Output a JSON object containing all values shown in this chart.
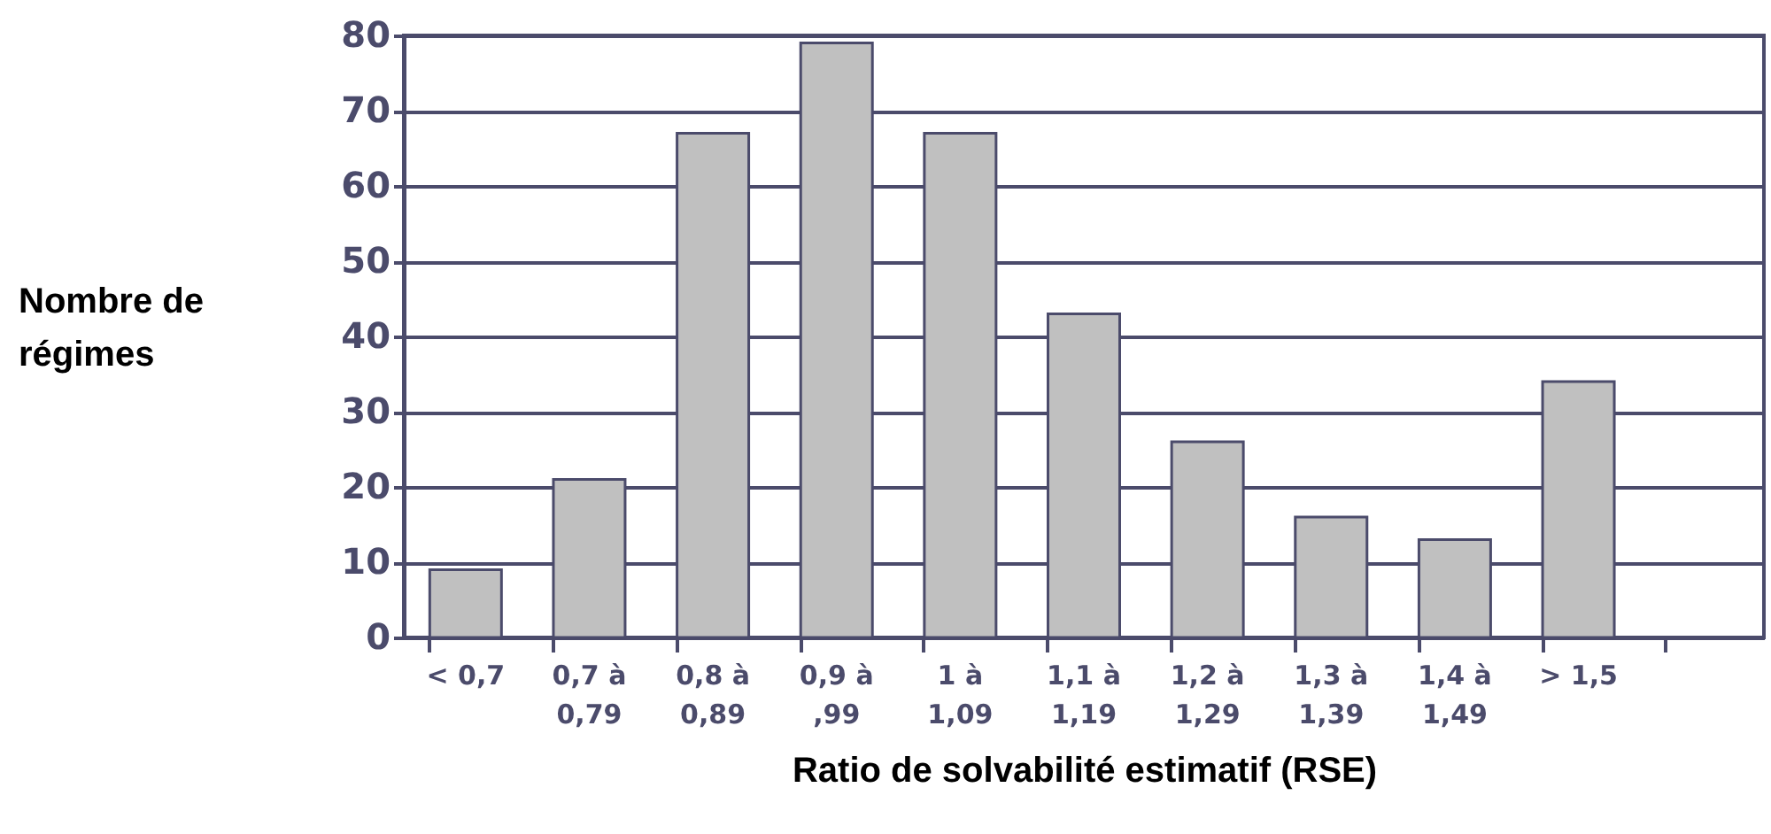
{
  "chart_data": {
    "type": "bar",
    "xlabel": "Ratio de solvabilité estimatif (RSE)",
    "ylabel": "Nombre de\nrégimes",
    "categories": [
      "< 0,7",
      "0,7 à\n0,79",
      "0,8 à\n0,89",
      "0,9 à\n,99",
      "1 à\n1,09",
      "1,1 à\n1,19",
      "1,2 à\n1,29",
      "1,3 à\n1,39",
      "1,4 à\n1,49",
      "> 1,5",
      null
    ],
    "values": [
      9,
      21,
      67,
      79,
      67,
      43,
      26,
      16,
      13,
      34,
      null
    ],
    "color": "#c0c0c0",
    "ylim": [
      0,
      80
    ],
    "yticks": [
      0,
      10,
      20,
      30,
      40,
      50,
      60,
      70,
      80
    ],
    "grid": "y"
  }
}
